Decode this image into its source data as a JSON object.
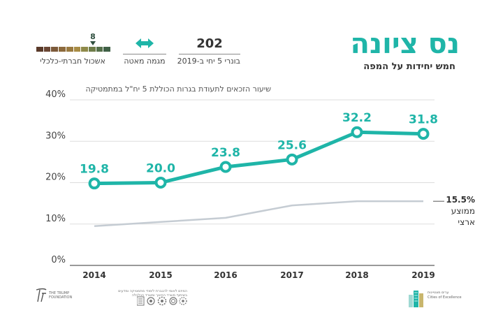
{
  "header": {
    "title": "נס ציונה",
    "subtitle": "חמש יחידות על המפה"
  },
  "stats": {
    "count_value": "202",
    "count_label": "בונרי 5 יחי ב-2019",
    "trend_label": "מגמה מאטה",
    "socio_label": "אשכול חברתי-כלכלי",
    "socio_value": "8",
    "socio_segments": 10,
    "socio_rank": 8
  },
  "colors": {
    "accent": "#1fb5a8",
    "national_line": "#c5ccd3",
    "axis": "#333333",
    "grid": "#dddddd"
  },
  "chart_data": {
    "type": "line",
    "title": "שיעור הזכאים לתעודת בגרות הכוללת 5 יח\"ל במתמטיקה",
    "x": [
      "2014",
      "2015",
      "2016",
      "2017",
      "2018",
      "2019"
    ],
    "series": [
      {
        "name": "נס ציונה",
        "values": [
          19.8,
          20.0,
          23.8,
          25.6,
          32.2,
          31.8
        ],
        "labels": [
          "19.8",
          "20.0",
          "23.8",
          "25.6",
          "32.2",
          "31.8"
        ]
      },
      {
        "name": "ממוצע ארצי",
        "values": [
          9.5,
          10.5,
          11.5,
          14.5,
          15.5,
          15.5
        ]
      }
    ],
    "y_ticks": [
      0,
      10,
      20,
      30,
      40
    ],
    "y_tick_labels": [
      "0%",
      "10%",
      "20%",
      "30%",
      "40%"
    ],
    "ylim": [
      0,
      40
    ],
    "national_label_value": "15.5%",
    "national_label_line1": "ממוצע",
    "national_label_line2": "ארצי"
  },
  "footer": {
    "foundation_text_1": "THE TRUMP",
    "foundation_text_2": "FOUNDATION",
    "partners_line_1": "המיזם לאומי להגברת לימודי מתמטיקה ומדעים",
    "partners_line_2": "בשיתוף משרד החינוך ומשרד הכלכלה",
    "cities_line_1": "ערים מצטיינות",
    "cities_line_2": "Cities of Excellence"
  }
}
